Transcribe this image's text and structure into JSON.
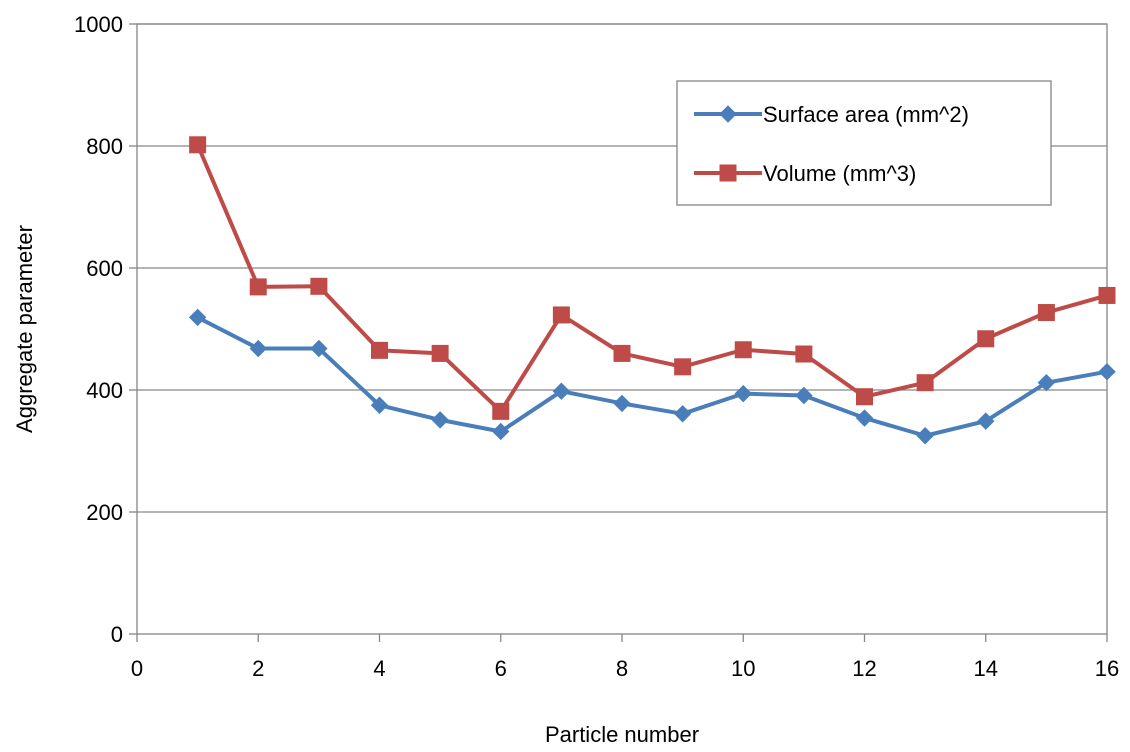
{
  "chart_data": {
    "type": "line",
    "title": "",
    "xlabel": "Particle number",
    "ylabel": "Aggregate parameter",
    "xlim": [
      0,
      16
    ],
    "ylim": [
      0,
      1000
    ],
    "x_ticks": [
      "0",
      "2",
      "4",
      "6",
      "8",
      "10",
      "12",
      "14",
      "16"
    ],
    "y_ticks": [
      "0",
      "200",
      "400",
      "600",
      "800",
      "1000"
    ],
    "grid": "horizontal",
    "legend_position": "top-right",
    "x": [
      1,
      2,
      3,
      4,
      5,
      6,
      7,
      8,
      9,
      10,
      11,
      12,
      13,
      14,
      15,
      16
    ],
    "series": [
      {
        "name": "Surface area (mm^2)",
        "color": "#4a7ebb",
        "marker": "diamond",
        "values": [
          519,
          468,
          468,
          375,
          351,
          332,
          398,
          378,
          361,
          394,
          391,
          354,
          325,
          349,
          412,
          430
        ]
      },
      {
        "name": "Volume (mm^3)",
        "color": "#be4b48",
        "marker": "square",
        "values": [
          802,
          569,
          570,
          465,
          460,
          365,
          523,
          460,
          438,
          466,
          459,
          389,
          412,
          484,
          527,
          555
        ]
      }
    ]
  }
}
